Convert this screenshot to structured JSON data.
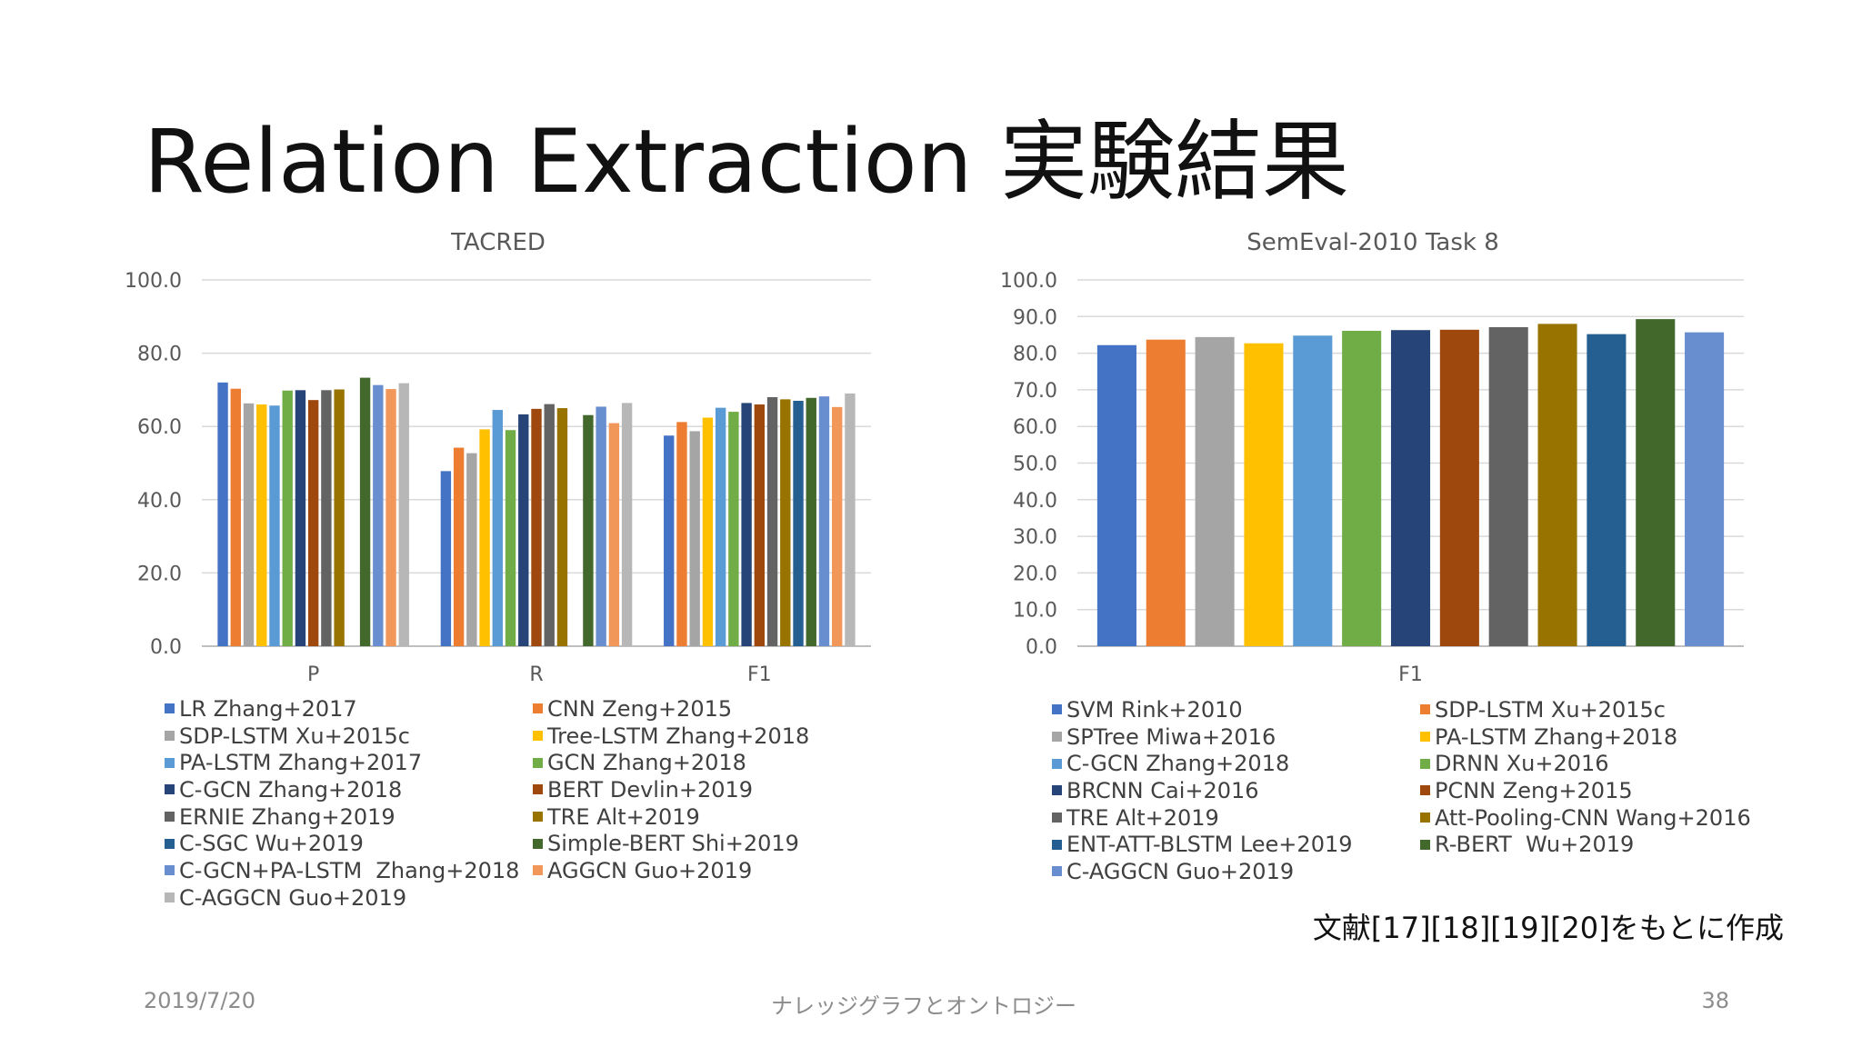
{
  "slide": {
    "title": "Relation Extraction 実験結果",
    "source_note": "文献[17][18][19][20]をもとに作成",
    "footer": {
      "date": "2019/7/20",
      "center": "ナレッジグラフとオントロジー",
      "page": "38"
    }
  },
  "chart_data": [
    {
      "type": "bar",
      "title": "TACRED",
      "categories": [
        "P",
        "R",
        "F1"
      ],
      "ylim": [
        0,
        100
      ],
      "yticks": [
        "0.0",
        "20.0",
        "40.0",
        "60.0",
        "80.0",
        "100.0"
      ],
      "grid": true,
      "legend_position": "bottom",
      "series": [
        {
          "name": "LR Zhang+2017",
          "color": "#4472C4",
          "values": [
            72.0,
            47.8,
            57.5
          ]
        },
        {
          "name": "CNN Zeng+2015",
          "color": "#ED7D31",
          "values": [
            70.3,
            54.2,
            61.2
          ]
        },
        {
          "name": "SDP-LSTM Xu+2015c",
          "color": "#A5A5A5",
          "values": [
            66.3,
            52.7,
            58.7
          ]
        },
        {
          "name": "Tree-LSTM Zhang+2018",
          "color": "#FFC000",
          "values": [
            66.0,
            59.2,
            62.4
          ]
        },
        {
          "name": "PA-LSTM Zhang+2017",
          "color": "#5B9BD5",
          "values": [
            65.7,
            64.5,
            65.1
          ]
        },
        {
          "name": "GCN Zhang+2018",
          "color": "#70AD47",
          "values": [
            69.8,
            59.0,
            64.0
          ]
        },
        {
          "name": "C-GCN Zhang+2018",
          "color": "#264478",
          "values": [
            69.9,
            63.3,
            66.4
          ]
        },
        {
          "name": "BERT Devlin+2019",
          "color": "#9E480E",
          "values": [
            67.2,
            64.8,
            66.0
          ]
        },
        {
          "name": "ERNIE Zhang+2019",
          "color": "#636363",
          "values": [
            69.9,
            66.1,
            68.0
          ]
        },
        {
          "name": "TRE Alt+2019",
          "color": "#997300",
          "values": [
            70.1,
            65.0,
            67.4
          ]
        },
        {
          "name": "C-SGC Wu+2019",
          "color": "#255E91",
          "values": [
            0,
            0,
            67.0
          ]
        },
        {
          "name": "Simple-BERT Shi+2019",
          "color": "#43682B",
          "values": [
            73.3,
            63.1,
            67.8
          ]
        },
        {
          "name": "C-GCN+PA-LSTM  Zhang+2018",
          "color": "#698ED0",
          "values": [
            71.3,
            65.4,
            68.2
          ]
        },
        {
          "name": "AGGCN Guo+2019",
          "color": "#F1975A",
          "values": [
            70.2,
            60.9,
            65.3
          ]
        },
        {
          "name": "C-AGGCN Guo+2019",
          "color": "#B7B7B7",
          "values": [
            71.8,
            66.4,
            69.0
          ]
        }
      ]
    },
    {
      "type": "bar",
      "title": "SemEval-2010 Task 8",
      "categories": [
        "F1"
      ],
      "ylim": [
        0,
        100
      ],
      "yticks": [
        "0.0",
        "10.0",
        "20.0",
        "30.0",
        "40.0",
        "50.0",
        "60.0",
        "70.0",
        "80.0",
        "90.0",
        "100.0"
      ],
      "grid": true,
      "legend_position": "bottom",
      "series": [
        {
          "name": "SVM Rink+2010",
          "color": "#4472C4",
          "values": [
            82.2
          ]
        },
        {
          "name": "SDP-LSTM Xu+2015c",
          "color": "#ED7D31",
          "values": [
            83.7
          ]
        },
        {
          "name": "SPTree Miwa+2016",
          "color": "#A5A5A5",
          "values": [
            84.4
          ]
        },
        {
          "name": "PA-LSTM Zhang+2018",
          "color": "#FFC000",
          "values": [
            82.7
          ]
        },
        {
          "name": "C-GCN Zhang+2018",
          "color": "#5B9BD5",
          "values": [
            84.8
          ]
        },
        {
          "name": "DRNN Xu+2016",
          "color": "#70AD47",
          "values": [
            86.1
          ]
        },
        {
          "name": "BRCNN Cai+2016",
          "color": "#264478",
          "values": [
            86.3
          ]
        },
        {
          "name": "PCNN Zeng+2015",
          "color": "#9E480E",
          "values": [
            86.4
          ]
        },
        {
          "name": "TRE Alt+2019",
          "color": "#636363",
          "values": [
            87.1
          ]
        },
        {
          "name": "Att-Pooling-CNN Wang+2016",
          "color": "#997300",
          "values": [
            88.0
          ]
        },
        {
          "name": "ENT-ATT-BLSTM Lee+2019",
          "color": "#255E91",
          "values": [
            85.2
          ]
        },
        {
          "name": "R-BERT  Wu+2019",
          "color": "#43682B",
          "values": [
            89.3
          ]
        },
        {
          "name": "C-AGGCN Guo+2019",
          "color": "#698ED0",
          "values": [
            85.7
          ]
        }
      ]
    }
  ]
}
